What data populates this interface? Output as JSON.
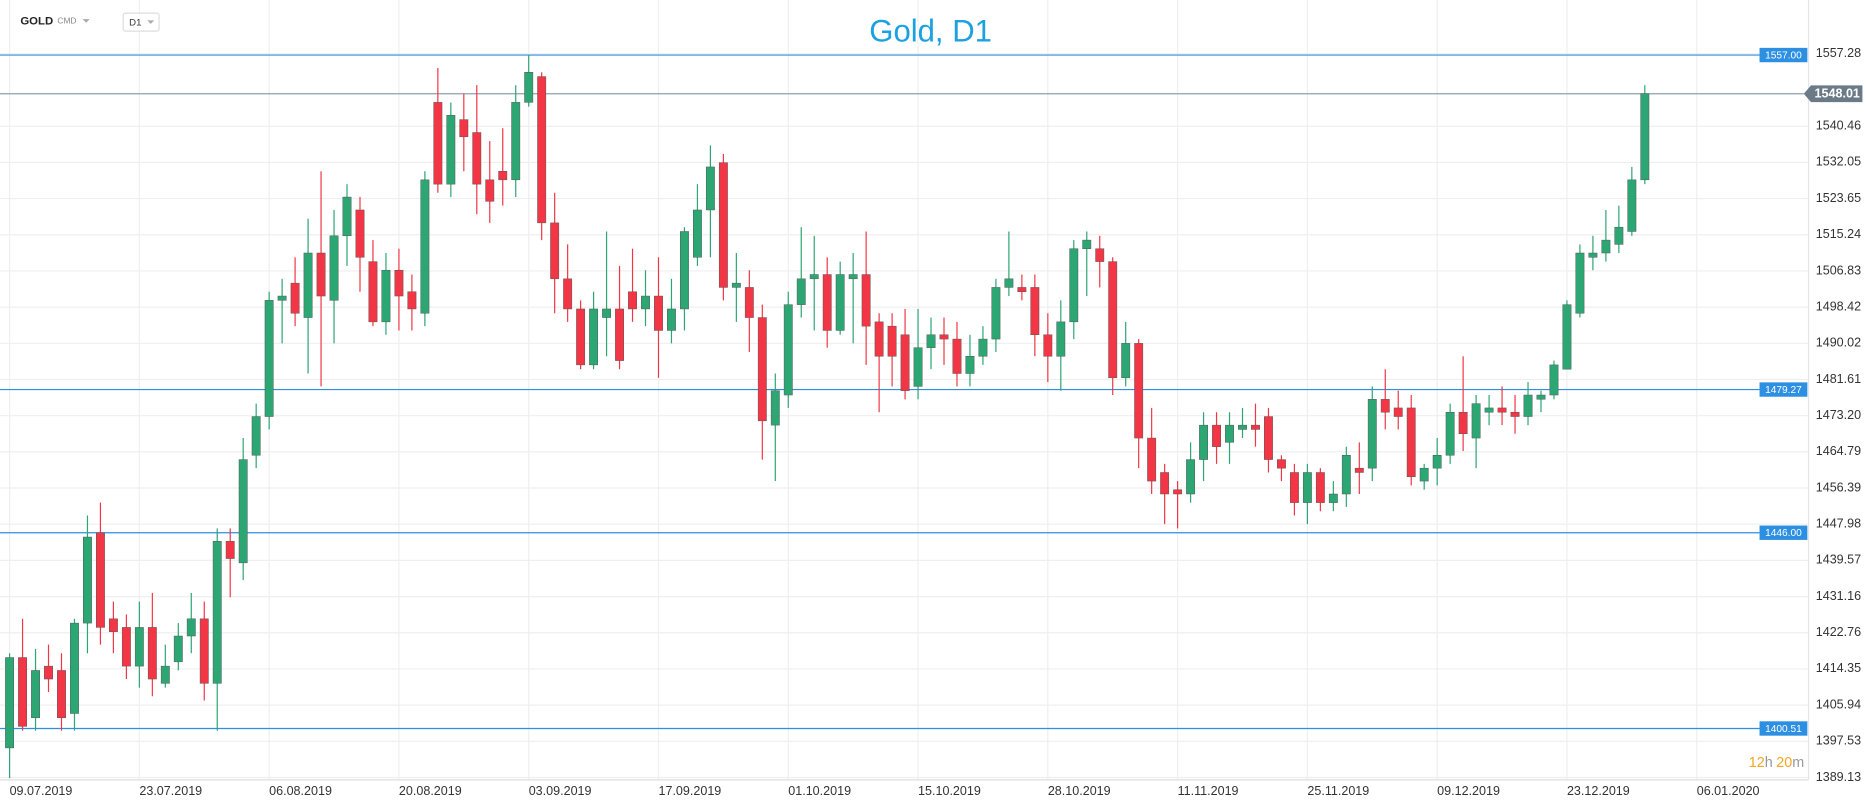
{
  "chart_data": {
    "type": "candlestick",
    "title": "Gold, D1",
    "symbol": "GOLD",
    "market": "CMD",
    "timeframe": "D1",
    "timer": {
      "hours": "12",
      "hours_unit": "h",
      "minutes": "20",
      "minutes_unit": "m"
    },
    "up_color": "#2ca673",
    "down_color": "#f23645",
    "level_color": "#2d8fe2",
    "grid": true,
    "categories": [
      "09.07.2019",
      null,
      null,
      null,
      null,
      null,
      null,
      null,
      null,
      null,
      "23.07.2019",
      null,
      null,
      null,
      null,
      null,
      null,
      null,
      null,
      null,
      "06.08.2019",
      null,
      null,
      null,
      null,
      null,
      null,
      null,
      null,
      null,
      "20.08.2019",
      null,
      null,
      null,
      null,
      null,
      null,
      null,
      null,
      null,
      "03.09.2019",
      null,
      null,
      null,
      null,
      null,
      null,
      null,
      null,
      null,
      "17.09.2019",
      null,
      null,
      null,
      null,
      null,
      null,
      null,
      null,
      null,
      "01.10.2019",
      null,
      null,
      null,
      null,
      null,
      null,
      null,
      null,
      null,
      "15.10.2019",
      null,
      null,
      null,
      null,
      null,
      null,
      null,
      null,
      null,
      "28.10.2019",
      null,
      null,
      null,
      null,
      null,
      null,
      null,
      null,
      null,
      "11.11.2019",
      null,
      null,
      null,
      null,
      null,
      null,
      null,
      null,
      null,
      "25.11.2019",
      null,
      null,
      null,
      null,
      null,
      null,
      null,
      null,
      null,
      "09.12.2019",
      null,
      null,
      null,
      null,
      null,
      null,
      null,
      null,
      null,
      "23.12.2019",
      null,
      null,
      null,
      null,
      null,
      null,
      null,
      null,
      null,
      "06.01.2020"
    ],
    "open": [
      1396,
      1417,
      1403,
      1415,
      1414,
      1404,
      1425,
      1446,
      1426,
      1424,
      1415,
      1424,
      1411,
      1416,
      1422,
      1426,
      1411,
      1444,
      1439,
      1464,
      1473,
      1500,
      1504,
      1496,
      1511,
      1500,
      1515,
      1521,
      1509,
      1495,
      1507,
      1502,
      1497,
      1546,
      1527,
      1542,
      1539,
      1528,
      1530,
      1528,
      1546,
      1552,
      1518,
      1505,
      1498,
      1485,
      1496,
      1498,
      1502,
      1498,
      1501,
      1493,
      1498,
      1510,
      1521,
      1532,
      1503,
      1503,
      1496,
      1471,
      1478,
      1499,
      1505,
      1506,
      1493,
      1505,
      1506,
      1495,
      1494,
      1492,
      1480,
      1489,
      1492,
      1491,
      1483,
      1487,
      1491,
      1503,
      1503,
      1503,
      1492,
      1487,
      1495,
      1512,
      1512,
      1509,
      1482,
      1490,
      1468,
      1460,
      1456,
      1455,
      1463,
      1471,
      1467,
      1470,
      1471,
      1473,
      1463,
      1460,
      1453,
      1460,
      1453,
      1455,
      1461,
      1461,
      1477,
      1475,
      1475,
      1458,
      1461,
      1464,
      1474,
      1468,
      1474,
      1475,
      1474,
      1473,
      1477,
      1478,
      1484,
      1497,
      1510,
      1511,
      1513,
      1516,
      1528,
      null,
      null,
      null,
      null
    ],
    "high": [
      1418,
      1426,
      1419,
      1420,
      1418,
      1426,
      1450,
      1453,
      1430,
      1427,
      1430,
      1432,
      1420,
      1425,
      1432,
      1430,
      1447,
      1447,
      1468,
      1476,
      1502,
      1505,
      1510,
      1519,
      1530,
      1521,
      1527,
      1524,
      1514,
      1511,
      1512,
      1506,
      1530,
      1554,
      1546,
      1548,
      1550,
      1537,
      1540,
      1550,
      1557,
      1553,
      1525,
      1513,
      1500,
      1502,
      1516,
      1508,
      1512,
      1507,
      1510,
      1505,
      1517,
      1527,
      1536,
      1534,
      1511,
      1507,
      1499,
      1483,
      1502,
      1517,
      1515,
      1510,
      1509,
      1511,
      1516,
      1497,
      1497,
      1498,
      1498,
      1496,
      1496,
      1495,
      1492,
      1494,
      1505,
      1516,
      1506,
      1506,
      1497,
      1500,
      1514,
      1516,
      1515,
      1510,
      1495,
      1491,
      1475,
      1462,
      1458,
      1467,
      1474,
      1474,
      1474,
      1475,
      1476,
      1475,
      1464,
      1462,
      1462,
      1461,
      1458,
      1466,
      1467,
      1480,
      1484,
      1479,
      1478,
      1462,
      1468,
      1476,
      1487,
      1478,
      1478,
      1480,
      1478,
      1481,
      1479,
      1486,
      1500,
      1513,
      1515,
      1521,
      1522,
      1531,
      1550,
      null,
      null,
      null,
      null
    ],
    "low": [
      1389,
      1400,
      1400,
      1409,
      1400,
      1400,
      1418,
      1420,
      1418,
      1412,
      1410,
      1408,
      1410,
      1414,
      1418,
      1407,
      1400,
      1431,
      1435,
      1461,
      1470,
      1490,
      1494,
      1483,
      1480,
      1490,
      1508,
      1502,
      1494,
      1492,
      1493,
      1493,
      1494,
      1525,
      1524,
      1530,
      1520,
      1518,
      1522,
      1524,
      1545,
      1514,
      1497,
      1495,
      1484,
      1484,
      1487,
      1484,
      1495,
      1494,
      1482,
      1490,
      1493,
      1508,
      1510,
      1500,
      1495,
      1488,
      1463,
      1458,
      1475,
      1496,
      1493,
      1489,
      1492,
      1490,
      1485,
      1474,
      1480,
      1477,
      1477,
      1484,
      1485,
      1480,
      1480,
      1485,
      1488,
      1501,
      1500,
      1487,
      1481,
      1479,
      1491,
      1501,
      1503,
      1478,
      1480,
      1461,
      1455,
      1448,
      1447,
      1453,
      1458,
      1462,
      1462,
      1468,
      1466,
      1460,
      1458,
      1450,
      1448,
      1451,
      1451,
      1452,
      1455,
      1458,
      1470,
      1470,
      1457,
      1456,
      1457,
      1462,
      1465,
      1461,
      1471,
      1471,
      1469,
      1471,
      1474,
      1477,
      1484,
      1496,
      1507,
      1509,
      1511,
      1515,
      1527,
      null,
      null,
      null,
      null
    ],
    "close": [
      1417,
      1401,
      1414,
      1412,
      1403,
      1425,
      1445,
      1424,
      1423,
      1415,
      1424,
      1412,
      1415,
      1422,
      1426,
      1411,
      1444,
      1440,
      1463,
      1473,
      1500,
      1501,
      1497,
      1511,
      1501,
      1515,
      1524,
      1510,
      1495,
      1507,
      1501,
      1498,
      1528,
      1527,
      1543,
      1538,
      1527,
      1523,
      1528,
      1546,
      1553,
      1518,
      1505,
      1498,
      1485,
      1498,
      1498,
      1486,
      1498,
      1501,
      1493,
      1498,
      1516,
      1521,
      1531,
      1503,
      1504,
      1496,
      1472,
      1479,
      1499,
      1505,
      1506,
      1493,
      1506,
      1506,
      1494,
      1487,
      1487,
      1479,
      1489,
      1492,
      1491,
      1483,
      1487,
      1491,
      1503,
      1505,
      1502,
      1492,
      1487,
      1495,
      1512,
      1514,
      1509,
      1482,
      1490,
      1468,
      1458,
      1455,
      1455,
      1463,
      1471,
      1466,
      1471,
      1471,
      1470,
      1463,
      1461,
      1453,
      1460,
      1453,
      1455,
      1464,
      1460,
      1477,
      1474,
      1473,
      1459,
      1461,
      1464,
      1474,
      1469,
      1476,
      1475,
      1474,
      1473,
      1478,
      1478,
      1485,
      1499,
      1511,
      1511,
      1514,
      1517,
      1528,
      1548.01,
      null,
      null,
      null,
      null
    ],
    "ylim": [
      1388.57,
      1569.79
    ],
    "yticks": [
      1557.28,
      1540.46,
      1532.05,
      1523.65,
      1515.24,
      1506.83,
      1498.42,
      1490.02,
      1481.61,
      {
        "value": 1473.2,
        "label": "1473.20"
      },
      1464.79,
      1456.39,
      1447.98,
      1439.57,
      1431.16,
      1422.76,
      1414.35,
      1405.94,
      1397.53,
      1389.13
    ],
    "levels": [
      {
        "value": 1557,
        "label": "1557.00"
      },
      {
        "value": 1479.27,
        "label": "1479.27"
      },
      {
        "value": 1446,
        "label": "1446.00"
      },
      {
        "value": 1400.51,
        "label": "1400.51"
      }
    ]
  }
}
